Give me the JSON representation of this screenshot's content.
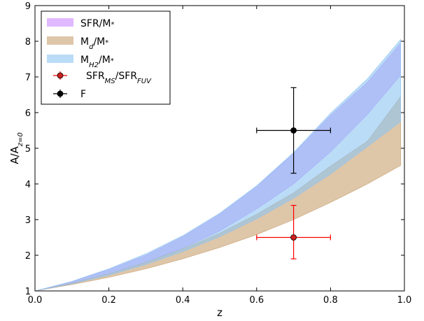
{
  "chart_data": {
    "type": "area",
    "xlabel": "z",
    "ylabel": {
      "main": "A/A",
      "sub": "z=0"
    },
    "xlim": [
      0.0,
      1.0
    ],
    "ylim": [
      1,
      9
    ],
    "xticks": [
      "0.0",
      "0.2",
      "0.4",
      "0.6",
      "0.8",
      "1.0"
    ],
    "yticks": [
      "1",
      "2",
      "3",
      "4",
      "5",
      "6",
      "7",
      "8",
      "9"
    ],
    "legend_position": "top-left",
    "bands": [
      {
        "name": "SFR/M",
        "label_main": "SFR/M",
        "label_sub": "*",
        "label_after": "",
        "color": "#cc88ff",
        "x": [
          0.0,
          0.1,
          0.2,
          0.3,
          0.4,
          0.5,
          0.6,
          0.7,
          0.8,
          0.9,
          0.99
        ],
        "lower": [
          1.0,
          1.22,
          1.48,
          1.8,
          2.2,
          2.68,
          3.3,
          4.0,
          4.9,
          5.95,
          7.05
        ],
        "upper": [
          1.0,
          1.26,
          1.6,
          2.0,
          2.52,
          3.15,
          3.92,
          4.85,
          5.92,
          6.85,
          7.95
        ]
      },
      {
        "name": "Md/M",
        "label_main": "M",
        "label_sub": "d",
        "label_after": "/M",
        "label_sub2": "*",
        "color": "#c8a070",
        "x": [
          0.0,
          0.1,
          0.2,
          0.3,
          0.4,
          0.5,
          0.6,
          0.7,
          0.8,
          0.9,
          0.99
        ],
        "lower": [
          1.0,
          1.18,
          1.38,
          1.62,
          1.9,
          2.22,
          2.58,
          3.0,
          3.48,
          4.0,
          4.52
        ],
        "upper": [
          1.0,
          1.22,
          1.48,
          1.8,
          2.18,
          2.62,
          3.15,
          3.75,
          4.5,
          5.2,
          6.45
        ]
      },
      {
        "name": "MH2/M",
        "label_main": "M",
        "label_sub": "H",
        "label_sub_sub": "2",
        "label_after": "/M",
        "label_sub2": "*",
        "color": "#8ec4f2",
        "x": [
          0.0,
          0.1,
          0.2,
          0.3,
          0.4,
          0.5,
          0.6,
          0.7,
          0.8,
          0.9,
          0.99
        ],
        "lower": [
          1.0,
          1.2,
          1.44,
          1.74,
          2.1,
          2.52,
          3.02,
          3.6,
          4.28,
          5.05,
          5.75
        ],
        "upper": [
          1.0,
          1.27,
          1.62,
          2.04,
          2.55,
          3.18,
          3.95,
          4.88,
          5.98,
          6.95,
          8.05
        ]
      }
    ],
    "points": [
      {
        "name": "SFR_MS/SFR_FUV",
        "label_main": "SFR",
        "label_sub": "MS",
        "label_after": "/SFR",
        "label_sub2": "FUV",
        "color": "#ff0000",
        "marker_fill": "#cc2222",
        "x": 0.7,
        "y": 2.5,
        "xerr": [
          0.1,
          0.1
        ],
        "yerr": [
          0.6,
          0.9
        ]
      },
      {
        "name": "F",
        "label_main": "F",
        "color": "#000000",
        "marker_fill": "#000000",
        "x": 0.7,
        "y": 5.5,
        "xerr": [
          0.1,
          0.1
        ],
        "yerr": [
          1.2,
          1.2
        ]
      }
    ]
  }
}
